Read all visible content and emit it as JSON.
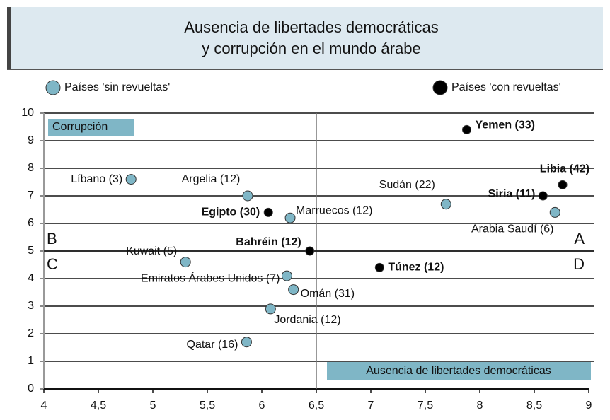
{
  "chart_data": {
    "type": "scatter",
    "title": [
      "Ausencia de libertades democráticas",
      "y corrupción en el mundo árabe"
    ],
    "x_label": "Ausencia de libertades democráticas",
    "y_label": "Corrupción",
    "quadrant_labels": [
      "A",
      "B",
      "C",
      "D"
    ],
    "quadrant_lines": {
      "x": 6.5,
      "y": 5
    },
    "xlim": [
      4,
      9
    ],
    "xticks": [
      4,
      {
        "value": 4.5,
        "label": "4,5"
      },
      5,
      {
        "value": 5.5,
        "label": "5,5"
      },
      6,
      {
        "value": 6.5,
        "label": "6,5"
      },
      7,
      {
        "value": 7.5,
        "label": "7,5"
      },
      8,
      {
        "value": 8.5,
        "label": "8,5"
      },
      9
    ],
    "ylim": [
      0,
      10
    ],
    "yticks": [
      0,
      1,
      2,
      3,
      4,
      5,
      6,
      7,
      8,
      9,
      10
    ],
    "grid": true,
    "series": [
      {
        "name": "Países 'sin revueltas'",
        "color": "#7fb6c6",
        "labels": [
          "Líbano (3)",
          "Argelia (12)",
          "Marruecos (12)",
          "Kuwait (5)",
          "Emiratos Árabes Unidos (7)",
          "Omán (31)",
          "Jordania (12)",
          "Qatar (16)",
          "Sudán (22)",
          "Arabia Saudí (6)"
        ],
        "x": [
          4.8,
          5.87,
          6.26,
          5.3,
          6.23,
          6.29,
          6.08,
          5.86,
          7.69,
          8.69
        ],
        "values": [
          7.6,
          7.0,
          6.2,
          4.6,
          4.1,
          3.6,
          2.9,
          1.7,
          6.7,
          6.4
        ]
      },
      {
        "name": "Países 'con revueltas'",
        "color": "#000000",
        "labels": [
          "Egipto (30)",
          "Bahréin (12)",
          "Yemen (33)",
          "Libia (42)",
          "Siria (11)",
          "Túnez (12)"
        ],
        "x": [
          6.06,
          6.44,
          7.88,
          8.76,
          8.58,
          7.08
        ],
        "values": [
          6.4,
          5.0,
          9.4,
          7.4,
          7.0,
          4.4
        ]
      }
    ]
  }
}
